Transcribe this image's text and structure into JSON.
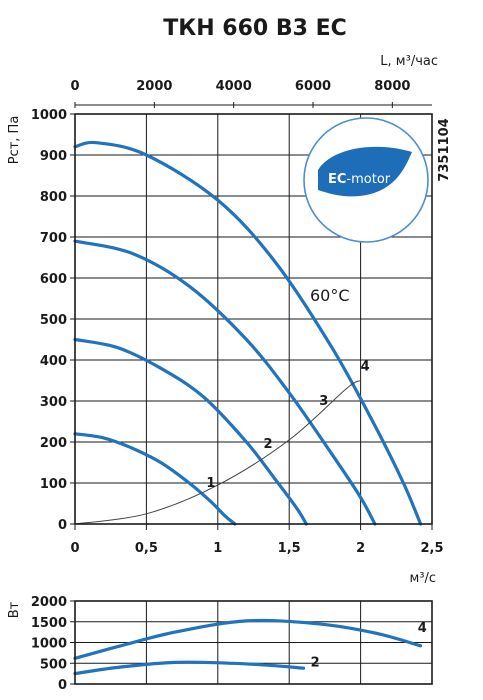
{
  "title": "ТКН 660 В3 ЕС",
  "code": "7351104",
  "colors": {
    "curve": "#1f73bf",
    "badge_leaf": "#1e6db8",
    "badge_ring": "#4a8fd0"
  },
  "badge": {
    "text_bold": "EC",
    "text_rest": "-motor"
  },
  "annotation": "60°C",
  "chart_data": [
    {
      "type": "line",
      "x_label": "м³/с",
      "y_label": "Pст, Па",
      "top_axis_label": "L, м³/час",
      "xlim": [
        0,
        2.5
      ],
      "ylim": [
        0,
        1000
      ],
      "top_xlim": [
        0,
        9000
      ],
      "x_ticks": [
        "0",
        "0,5",
        "1",
        "1,5",
        "2",
        "2,5"
      ],
      "x_tick_values": [
        0,
        0.5,
        1,
        1.5,
        2,
        2.5
      ],
      "top_ticks": [
        "0",
        "2000",
        "4000",
        "6000",
        "8000"
      ],
      "top_tick_values": [
        0,
        2000,
        4000,
        6000,
        8000
      ],
      "y_ticks": [
        "0",
        "100",
        "200",
        "300",
        "400",
        "500",
        "600",
        "700",
        "800",
        "900",
        "1000"
      ],
      "y_tick_values": [
        0,
        100,
        200,
        300,
        400,
        500,
        600,
        700,
        800,
        900,
        1000
      ],
      "grid": true,
      "series": [
        {
          "name": "1",
          "x": [
            0,
            0.2,
            0.4,
            0.6,
            0.8,
            0.95,
            1.05,
            1.12
          ],
          "y": [
            220,
            210,
            185,
            150,
            100,
            55,
            20,
            0
          ]
        },
        {
          "name": "2",
          "x": [
            0,
            0.3,
            0.6,
            0.9,
            1.2,
            1.4,
            1.55,
            1.62
          ],
          "y": [
            450,
            430,
            380,
            310,
            200,
            110,
            40,
            0
          ]
        },
        {
          "name": "3",
          "x": [
            0,
            0.4,
            0.8,
            1.2,
            1.5,
            1.8,
            2.0,
            2.1
          ],
          "y": [
            690,
            660,
            580,
            450,
            320,
            170,
            65,
            0
          ]
        },
        {
          "name": "4",
          "x": [
            0,
            0.15,
            0.5,
            1.0,
            1.4,
            1.8,
            2.1,
            2.3,
            2.42
          ],
          "y": [
            920,
            930,
            900,
            790,
            640,
            430,
            240,
            100,
            0
          ]
        },
        {
          "name": "system",
          "x": [
            0,
            0.5,
            1.0,
            1.5,
            1.9,
            2.0
          ],
          "y": [
            0,
            25,
            95,
            205,
            330,
            350
          ]
        }
      ],
      "curve_labels": [
        {
          "text": "1",
          "x": 0.92,
          "y": 90
        },
        {
          "text": "2",
          "x": 1.32,
          "y": 185
        },
        {
          "text": "3",
          "x": 1.71,
          "y": 290
        },
        {
          "text": "4",
          "x": 2.0,
          "y": 375
        }
      ]
    },
    {
      "type": "line",
      "y_label": "Вт",
      "xlim": [
        0,
        2.5
      ],
      "ylim": [
        0,
        2000
      ],
      "y_ticks": [
        "0",
        "500",
        "1000",
        "1500",
        "2000"
      ],
      "y_tick_values": [
        0,
        500,
        1000,
        1500,
        2000
      ],
      "grid": true,
      "series": [
        {
          "name": "4",
          "x": [
            0,
            0.3,
            0.7,
            1.2,
            1.7,
            2.1,
            2.42
          ],
          "y": [
            620,
            900,
            1250,
            1520,
            1450,
            1230,
            920
          ]
        },
        {
          "name": "2",
          "x": [
            0,
            0.3,
            0.7,
            1.1,
            1.4,
            1.6
          ],
          "y": [
            250,
            400,
            520,
            500,
            440,
            380
          ]
        }
      ],
      "curve_labels": [
        {
          "text": "4",
          "x": 2.4,
          "y": 1250
        },
        {
          "text": "2",
          "x": 1.65,
          "y": 420
        }
      ]
    }
  ]
}
